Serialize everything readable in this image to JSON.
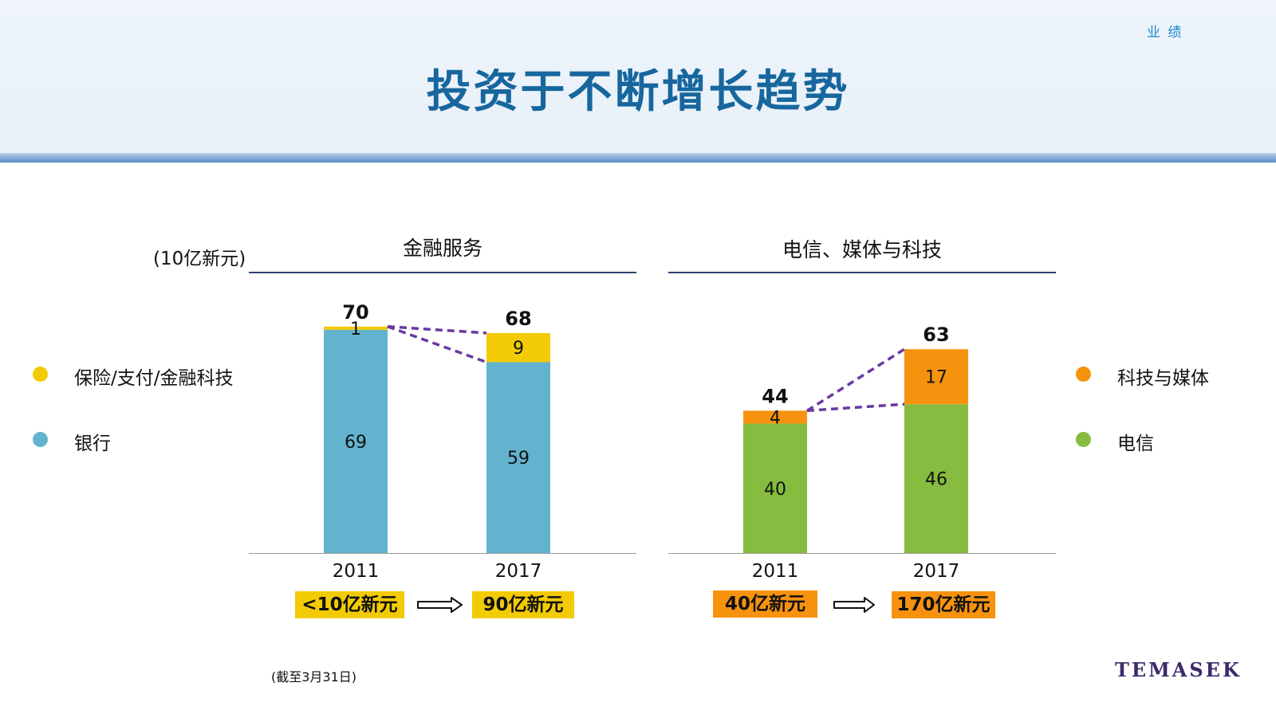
{
  "header": {
    "section_tag": "业 绩",
    "title": "投资于不断增长趋势"
  },
  "unit_label": "(10亿新元)",
  "legend_left": [
    {
      "label": "保险/支付/金融科技",
      "color": "#f2cb05"
    },
    {
      "label": "银行",
      "color": "#63b3cf"
    }
  ],
  "legend_right": [
    {
      "label": "科技与媒体",
      "color": "#f7920f"
    },
    {
      "label": "电信",
      "color": "#86bc3f"
    }
  ],
  "footnote": "(截至3月31日)",
  "logo_text": "TEMASEK",
  "colors": {
    "bank": "#63b3cf",
    "insurance": "#f2cb05",
    "telecom": "#86bc3f",
    "tech_media": "#f7920f",
    "connector": "#6a3aa0"
  },
  "chart_data": [
    {
      "type": "bar",
      "stacked": true,
      "title": "金融服务",
      "categories": [
        "2011",
        "2017"
      ],
      "series": [
        {
          "name": "银行",
          "values": [
            69,
            59
          ]
        },
        {
          "name": "保险/支付/金融科技",
          "values": [
            1,
            9
          ]
        }
      ],
      "totals": [
        70,
        68
      ],
      "ylim": [
        0,
        80
      ],
      "badges": [
        "<10亿新元",
        "90亿新元"
      ]
    },
    {
      "type": "bar",
      "stacked": true,
      "title": "电信、媒体与科技",
      "categories": [
        "2011",
        "2017"
      ],
      "series": [
        {
          "name": "电信",
          "values": [
            40,
            46
          ]
        },
        {
          "name": "科技与媒体",
          "values": [
            4,
            17
          ]
        }
      ],
      "totals": [
        44,
        63
      ],
      "ylim": [
        0,
        80
      ],
      "badges": [
        "40亿新元",
        "170亿新元"
      ]
    }
  ]
}
